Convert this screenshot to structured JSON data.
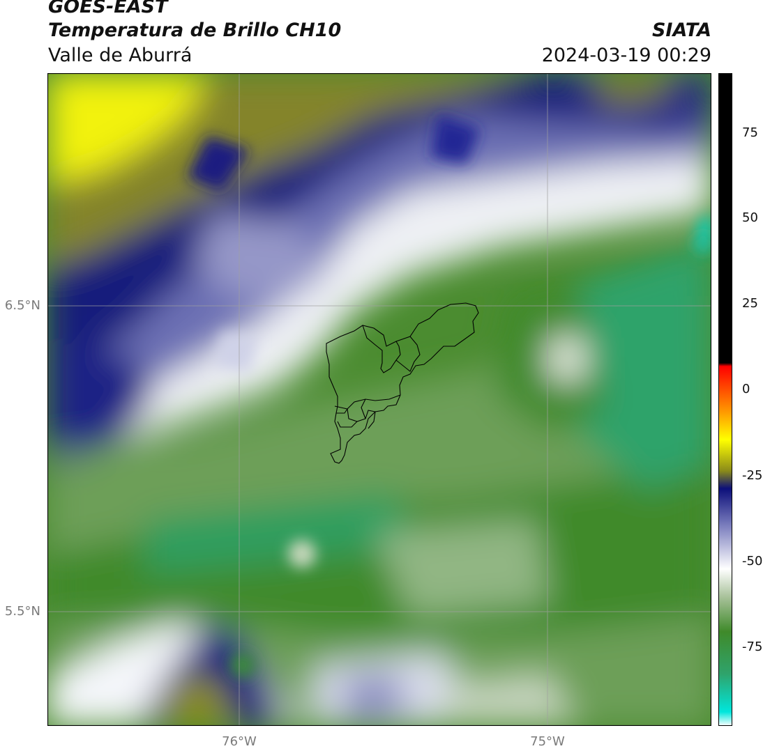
{
  "header": {
    "satellite": "GOES-EAST",
    "product": "Temperatura de Brillo CH10",
    "region": "Valle de Aburrá",
    "organization": "SIATA",
    "datetime": "2024-03-19 00:29"
  },
  "map": {
    "lat_labels": [
      "6.5°N",
      "5.5°N"
    ],
    "lon_labels": [
      "76°W",
      "75°W"
    ],
    "lat_range": [
      5.13,
      7.25
    ],
    "lon_range": [
      -76.62,
      -74.53
    ],
    "grid": true
  },
  "colorbar": {
    "ticks": [
      "75",
      "50",
      "25",
      "0",
      "-25",
      "-50",
      "-75"
    ],
    "range": [
      -95,
      92
    ],
    "stops": [
      {
        "value": -95,
        "color": "#ffffff"
      },
      {
        "value": -91,
        "color": "#00e6dc"
      },
      {
        "value": -80,
        "color": "#2fa36b"
      },
      {
        "value": -68,
        "color": "#3f8a2a"
      },
      {
        "value": -58,
        "color": "#a9c29b"
      },
      {
        "value": -50,
        "color": "#ffffff"
      },
      {
        "value": -38,
        "color": "#7f82c0"
      },
      {
        "value": -27,
        "color": "#0c0f7a"
      },
      {
        "value": -22,
        "color": "#8a8a1a"
      },
      {
        "value": -13,
        "color": "#ffff00"
      },
      {
        "value": -5,
        "color": "#ff9900"
      },
      {
        "value": 8,
        "color": "#ff0000"
      },
      {
        "value": 9,
        "color": "#000000"
      },
      {
        "value": 92,
        "color": "#000000"
      }
    ]
  }
}
